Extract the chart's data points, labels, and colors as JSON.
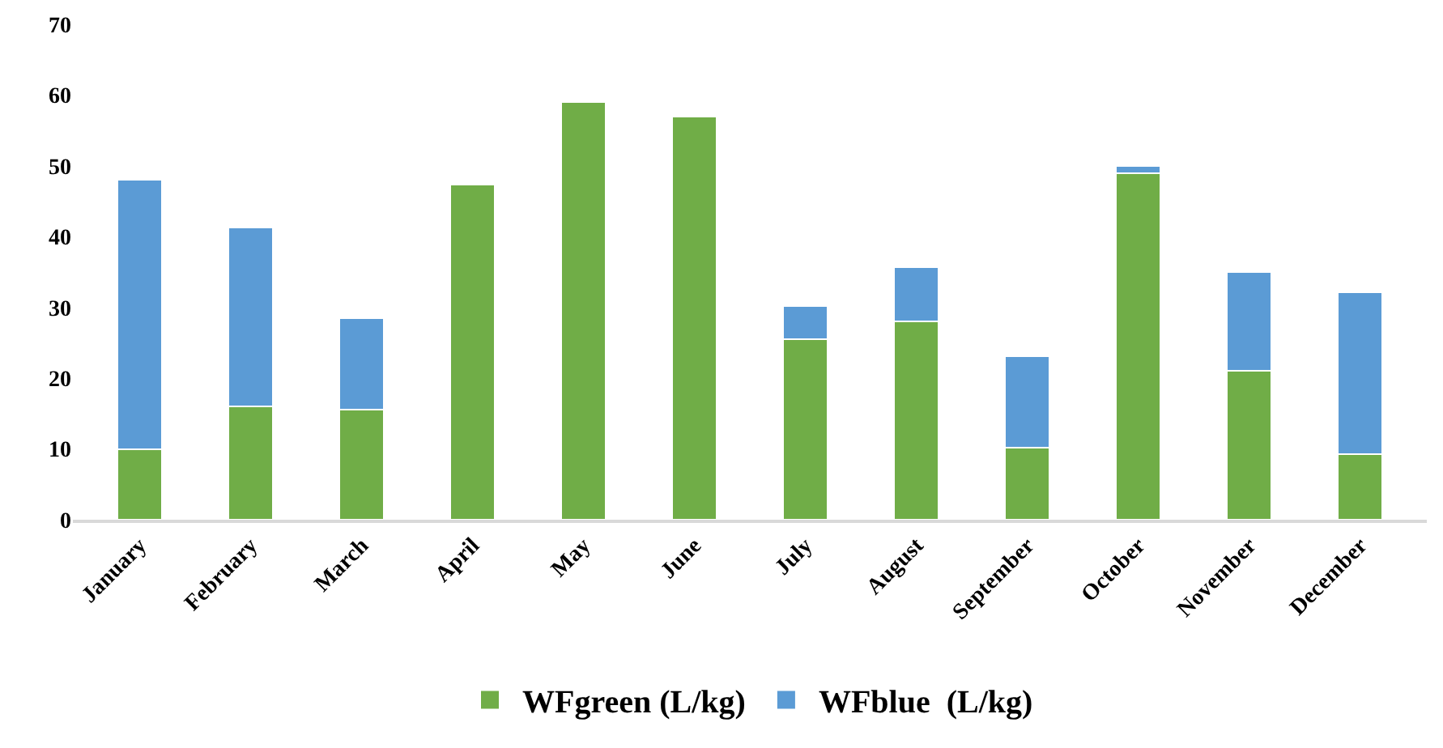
{
  "chart_data": {
    "type": "bar",
    "stacked": true,
    "categories": [
      "January",
      "February",
      "March",
      "April",
      "May",
      "June",
      "July",
      "August",
      "September",
      "October",
      "November",
      "December"
    ],
    "series": [
      {
        "name": "WFgreen (L/kg)",
        "color": "#70ad47",
        "values": [
          10,
          16,
          15.5,
          47.3,
          59,
          57,
          25.5,
          28,
          10.2,
          49,
          21,
          9.3
        ]
      },
      {
        "name": "WFblue  (L/kg)",
        "color": "#5b9bd5",
        "values": [
          38,
          25.3,
          13,
          null,
          null,
          null,
          4.7,
          7.7,
          12.9,
          1,
          14,
          22.8
        ]
      }
    ],
    "ylim": [
      0,
      70
    ],
    "yticks": [
      0,
      10,
      20,
      30,
      40,
      50,
      60,
      70
    ],
    "grid": false,
    "legend": "bottom"
  }
}
